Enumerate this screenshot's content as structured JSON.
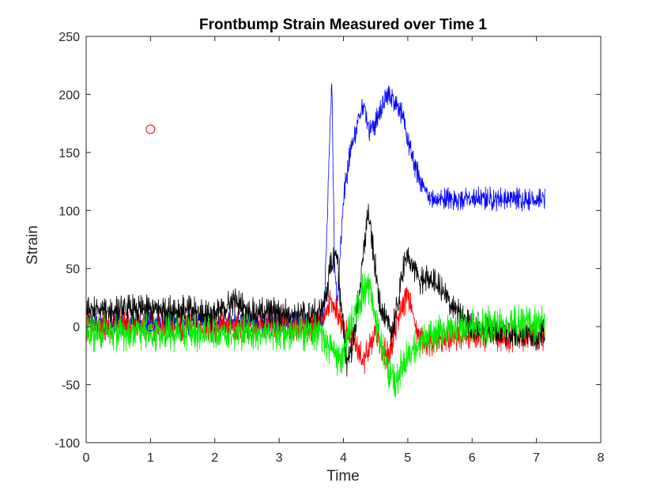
{
  "chart_data": {
    "type": "line",
    "title": "Frontbump Strain Measured over Time 1",
    "xlabel": "Time",
    "ylabel": "Strain",
    "xlim": [
      0,
      8
    ],
    "ylim": [
      -100,
      250
    ],
    "xticks": [
      "0",
      "1",
      "2",
      "3",
      "4",
      "5",
      "6",
      "7",
      "8"
    ],
    "yticks": [
      "-100",
      "-50",
      "0",
      "50",
      "100",
      "150",
      "200",
      "250"
    ],
    "grid": false,
    "legend": "none",
    "x_end": 7.13,
    "series": [
      {
        "color": "#0000ff",
        "noise": 7,
        "points": [
          [
            0,
            3
          ],
          [
            3.6,
            3
          ],
          [
            3.7,
            8
          ],
          [
            3.78,
            150
          ],
          [
            3.82,
            210
          ],
          [
            3.86,
            60
          ],
          [
            3.9,
            20
          ],
          [
            4.0,
            110
          ],
          [
            4.1,
            150
          ],
          [
            4.2,
            170
          ],
          [
            4.3,
            195
          ],
          [
            4.4,
            170
          ],
          [
            4.5,
            175
          ],
          [
            4.6,
            190
          ],
          [
            4.7,
            200
          ],
          [
            4.8,
            195
          ],
          [
            4.9,
            185
          ],
          [
            5.0,
            160
          ],
          [
            5.1,
            140
          ],
          [
            5.2,
            125
          ],
          [
            5.3,
            115
          ],
          [
            5.4,
            108
          ],
          [
            5.6,
            110
          ],
          [
            6.0,
            110
          ],
          [
            6.5,
            110
          ],
          [
            7.13,
            110
          ]
        ]
      },
      {
        "color": "#ff0000",
        "noise": 9,
        "points": [
          [
            0,
            0
          ],
          [
            3.5,
            0
          ],
          [
            3.7,
            5
          ],
          [
            3.8,
            25
          ],
          [
            3.9,
            15
          ],
          [
            4.0,
            0
          ],
          [
            4.1,
            -10
          ],
          [
            4.2,
            -15
          ],
          [
            4.3,
            -28
          ],
          [
            4.4,
            -22
          ],
          [
            4.5,
            -5
          ],
          [
            4.6,
            -18
          ],
          [
            4.7,
            -25
          ],
          [
            4.8,
            -5
          ],
          [
            4.9,
            15
          ],
          [
            5.0,
            28
          ],
          [
            5.1,
            5
          ],
          [
            5.2,
            -10
          ],
          [
            5.4,
            -15
          ],
          [
            5.6,
            -10
          ],
          [
            6.0,
            -8
          ],
          [
            6.5,
            -10
          ],
          [
            7.13,
            -8
          ]
        ]
      },
      {
        "color": "#000000",
        "noise": 9,
        "points": [
          [
            0,
            14
          ],
          [
            1.5,
            14
          ],
          [
            2.0,
            10
          ],
          [
            2.3,
            22
          ],
          [
            2.6,
            12
          ],
          [
            3.0,
            12
          ],
          [
            3.4,
            10
          ],
          [
            3.6,
            10
          ],
          [
            3.7,
            20
          ],
          [
            3.8,
            50
          ],
          [
            3.9,
            65
          ],
          [
            3.95,
            25
          ],
          [
            4.05,
            -30
          ],
          [
            4.15,
            -15
          ],
          [
            4.3,
            55
          ],
          [
            4.38,
            100
          ],
          [
            4.45,
            70
          ],
          [
            4.55,
            25
          ],
          [
            4.65,
            5
          ],
          [
            4.75,
            -5
          ],
          [
            4.85,
            20
          ],
          [
            4.95,
            60
          ],
          [
            5.05,
            55
          ],
          [
            5.2,
            40
          ],
          [
            5.4,
            40
          ],
          [
            5.6,
            25
          ],
          [
            5.8,
            10
          ],
          [
            6.0,
            0
          ],
          [
            6.5,
            -5
          ],
          [
            7.13,
            -8
          ]
        ]
      },
      {
        "color": "#00ee00",
        "noise": 11,
        "points": [
          [
            0,
            -5
          ],
          [
            3.4,
            -5
          ],
          [
            3.6,
            -5
          ],
          [
            3.8,
            -18
          ],
          [
            3.95,
            -30
          ],
          [
            4.1,
            0
          ],
          [
            4.2,
            15
          ],
          [
            4.3,
            30
          ],
          [
            4.4,
            35
          ],
          [
            4.5,
            5
          ],
          [
            4.6,
            -15
          ],
          [
            4.7,
            -40
          ],
          [
            4.8,
            -50
          ],
          [
            4.9,
            -35
          ],
          [
            5.0,
            -25
          ],
          [
            5.2,
            -15
          ],
          [
            5.4,
            -8
          ],
          [
            5.6,
            -3
          ],
          [
            6.0,
            0
          ],
          [
            6.5,
            2
          ],
          [
            7.13,
            3
          ]
        ]
      }
    ],
    "markers": [
      {
        "x": 1,
        "y": 170,
        "color": "#ff0000",
        "shape": "circle"
      },
      {
        "x": 1,
        "y": 0,
        "color": "#0000ff",
        "shape": "circle"
      }
    ]
  }
}
